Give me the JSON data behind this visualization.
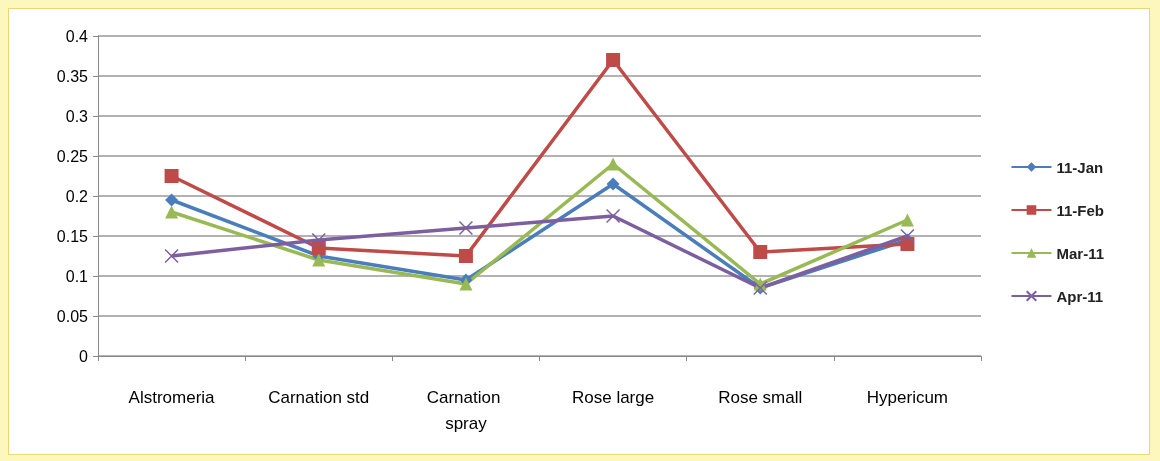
{
  "chart_data": {
    "type": "line",
    "categories": [
      "Alstromeria",
      "Carnation std",
      "Carnation spray",
      "Rose large",
      "Rose small",
      "Hypericum"
    ],
    "series": [
      {
        "name": "11-Jan",
        "color": "#4a7ebb",
        "marker": "diamond",
        "values": [
          0.195,
          0.125,
          0.095,
          0.215,
          0.085,
          0.145
        ]
      },
      {
        "name": "11-Feb",
        "color": "#be4b48",
        "marker": "square",
        "values": [
          0.225,
          0.135,
          0.125,
          0.37,
          0.13,
          0.14
        ]
      },
      {
        "name": "Mar-11",
        "color": "#98b954",
        "marker": "triangle",
        "values": [
          0.18,
          0.12,
          0.09,
          0.24,
          0.09,
          0.17
        ]
      },
      {
        "name": "Apr-11",
        "color": "#7d5fa0",
        "marker": "cross",
        "values": [
          0.125,
          0.145,
          0.16,
          0.175,
          0.085,
          0.15
        ]
      }
    ],
    "ylim": [
      0,
      0.4
    ],
    "yticks": [
      0,
      0.05,
      0.1,
      0.15,
      0.2,
      0.25,
      0.3,
      0.35,
      0.4
    ],
    "grid": "y",
    "legend": "right",
    "line_style": "solid"
  }
}
